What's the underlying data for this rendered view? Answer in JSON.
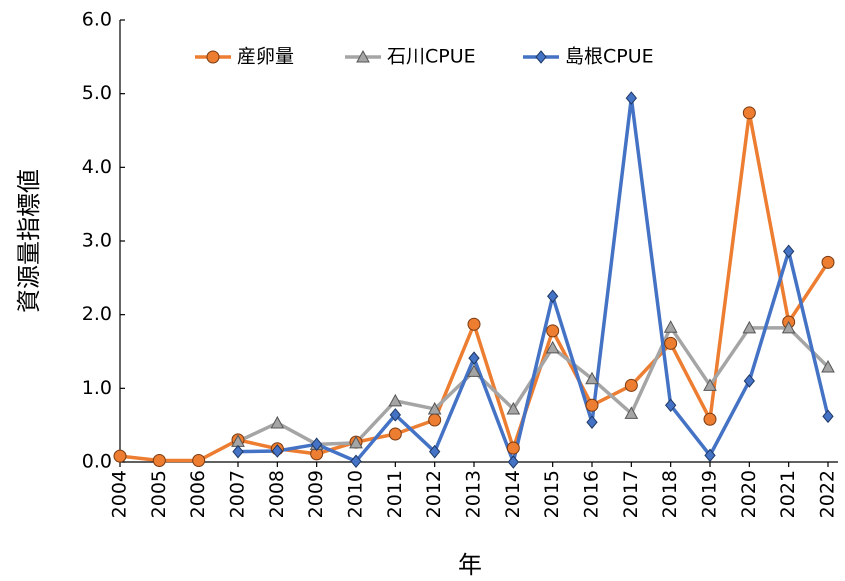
{
  "chart_data": {
    "type": "line",
    "y_label": "資源量指標値",
    "x_label": "年",
    "categories": [
      "2004",
      "2005",
      "2006",
      "2007",
      "2008",
      "2009",
      "2010",
      "2011",
      "2012",
      "2013",
      "2014",
      "2015",
      "2016",
      "2017",
      "2018",
      "2019",
      "2020",
      "2021",
      "2022"
    ],
    "series": [
      {
        "name": "産卵量",
        "color": "#ed7d31",
        "marker": "circle",
        "values": [
          0.08,
          0.02,
          0.02,
          0.3,
          0.18,
          0.11,
          0.27,
          0.38,
          0.57,
          1.87,
          0.19,
          1.78,
          0.77,
          1.04,
          1.61,
          0.58,
          4.74,
          1.9,
          2.71
        ]
      },
      {
        "name": "石川CPUE",
        "color": "#a5a5a5",
        "marker": "triangle",
        "values": [
          null,
          null,
          null,
          0.28,
          0.53,
          0.24,
          0.26,
          0.83,
          0.72,
          1.23,
          0.72,
          1.55,
          1.13,
          0.66,
          1.83,
          1.04,
          1.82,
          1.82,
          1.29
        ]
      },
      {
        "name": "島根CPUE",
        "color": "#4472c4",
        "marker": "diamond",
        "values": [
          null,
          null,
          null,
          0.14,
          0.15,
          0.24,
          0.01,
          0.64,
          0.14,
          1.41,
          0.0,
          2.25,
          0.54,
          4.94,
          0.77,
          0.09,
          1.1,
          2.86,
          0.62
        ]
      }
    ],
    "ylim": [
      0,
      6
    ],
    "yticks": [
      {
        "value": 0,
        "label": "0.0"
      },
      {
        "value": 1,
        "label": "1.0"
      },
      {
        "value": 2,
        "label": "2.0"
      },
      {
        "value": 3,
        "label": "3.0"
      },
      {
        "value": 4,
        "label": "4.0"
      },
      {
        "value": 5,
        "label": "5.0"
      },
      {
        "value": 6,
        "label": "6.0"
      }
    ],
    "grid": false,
    "legend": "top"
  }
}
